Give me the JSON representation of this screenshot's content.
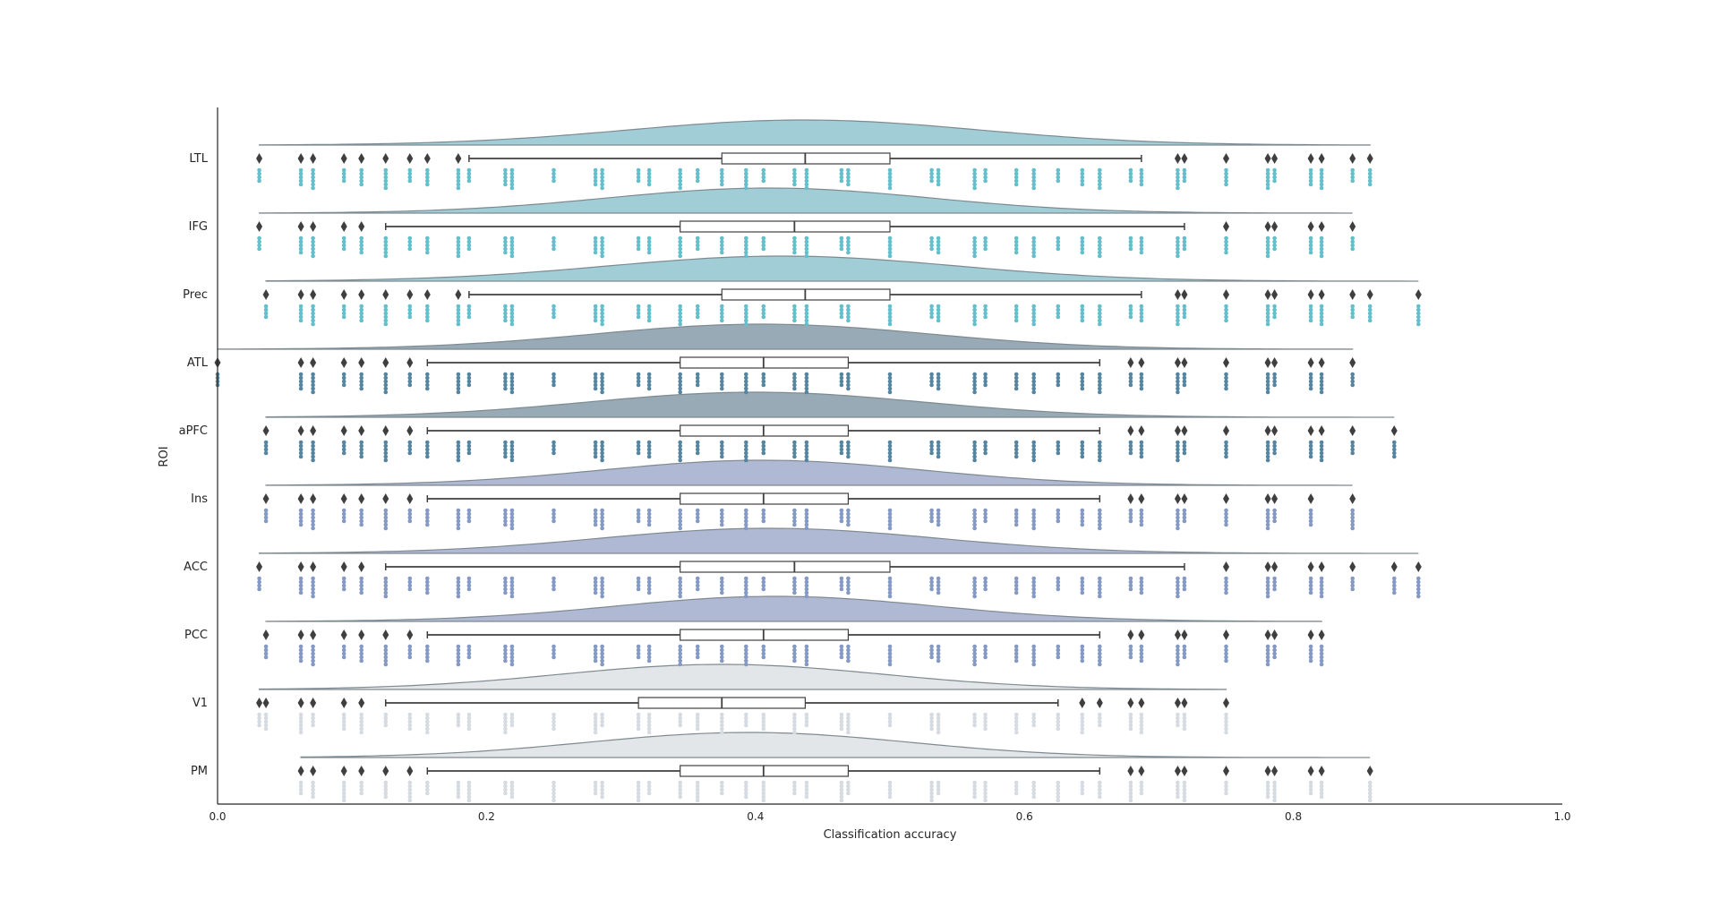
{
  "chart_data": {
    "type": "raincloud",
    "xlabel": "Classification accuracy",
    "ylabel": "ROI",
    "xlim": [
      0.0,
      1.0
    ],
    "xticks": [
      "0.0",
      "0.2",
      "0.4",
      "0.6",
      "0.8",
      "1.0"
    ],
    "xtick_values": [
      0.0,
      0.2,
      0.4,
      0.6,
      0.8,
      1.0
    ],
    "grid": false,
    "categories": [
      "LTL",
      "IFG",
      "Prec",
      "ATL",
      "aPFC",
      "Ins",
      "ACC",
      "PCC",
      "V1",
      "PM"
    ],
    "series": [
      {
        "category": "LTL",
        "color": "#62bfcb",
        "cloud_color": "#a1cdd6",
        "kde": {
          "mode": 0.436,
          "sd": 0.13,
          "min": 0.031,
          "max": 0.857
        },
        "box": {
          "whisker_low": 0.187,
          "q1": 0.375,
          "median": 0.437,
          "q3": 0.5,
          "whisker_high": 0.687
        },
        "outliers": [
          0.031,
          0.062,
          0.071,
          0.094,
          0.107,
          0.125,
          0.143,
          0.156,
          0.179,
          0.714,
          0.719,
          0.75,
          0.781,
          0.786,
          0.813,
          0.821,
          0.844,
          0.857
        ],
        "points": [
          0.031,
          0.062,
          0.071,
          0.094,
          0.107,
          0.125,
          0.143,
          0.156,
          0.179,
          0.187,
          0.214,
          0.219,
          0.25,
          0.281,
          0.286,
          0.313,
          0.321,
          0.344,
          0.357,
          0.375,
          0.393,
          0.406,
          0.429,
          0.438,
          0.464,
          0.469,
          0.5,
          0.531,
          0.536,
          0.563,
          0.571,
          0.594,
          0.607,
          0.625,
          0.643,
          0.656,
          0.679,
          0.687,
          0.714,
          0.719,
          0.75,
          0.781,
          0.786,
          0.813,
          0.821,
          0.844,
          0.857
        ]
      },
      {
        "category": "IFG",
        "color": "#62bfcb",
        "cloud_color": "#a1cdd6",
        "kde": {
          "mode": 0.41,
          "sd": 0.12,
          "min": 0.031,
          "max": 0.844
        },
        "box": {
          "whisker_low": 0.125,
          "q1": 0.344,
          "median": 0.429,
          "q3": 0.5,
          "whisker_high": 0.719
        },
        "outliers": [
          0.031,
          0.062,
          0.071,
          0.094,
          0.107,
          0.75,
          0.781,
          0.786,
          0.813,
          0.821,
          0.844
        ],
        "points": [
          0.031,
          0.062,
          0.071,
          0.094,
          0.107,
          0.125,
          0.143,
          0.156,
          0.179,
          0.187,
          0.214,
          0.219,
          0.25,
          0.281,
          0.286,
          0.313,
          0.321,
          0.344,
          0.357,
          0.375,
          0.393,
          0.406,
          0.429,
          0.438,
          0.464,
          0.469,
          0.5,
          0.531,
          0.536,
          0.563,
          0.571,
          0.594,
          0.607,
          0.625,
          0.643,
          0.656,
          0.679,
          0.687,
          0.714,
          0.719,
          0.75,
          0.781,
          0.786,
          0.813,
          0.821,
          0.844
        ]
      },
      {
        "category": "Prec",
        "color": "#62bfcb",
        "cloud_color": "#a1cdd6",
        "kde": {
          "mode": 0.42,
          "sd": 0.13,
          "min": 0.036,
          "max": 0.893
        },
        "box": {
          "whisker_low": 0.187,
          "q1": 0.375,
          "median": 0.437,
          "q3": 0.5,
          "whisker_high": 0.687
        },
        "outliers": [
          0.036,
          0.062,
          0.071,
          0.094,
          0.107,
          0.125,
          0.143,
          0.156,
          0.179,
          0.714,
          0.719,
          0.75,
          0.781,
          0.786,
          0.813,
          0.821,
          0.844,
          0.857,
          0.893
        ],
        "points": [
          0.036,
          0.062,
          0.071,
          0.094,
          0.107,
          0.125,
          0.143,
          0.156,
          0.179,
          0.187,
          0.214,
          0.219,
          0.25,
          0.281,
          0.286,
          0.313,
          0.321,
          0.344,
          0.357,
          0.375,
          0.393,
          0.406,
          0.429,
          0.438,
          0.464,
          0.469,
          0.5,
          0.531,
          0.536,
          0.563,
          0.571,
          0.594,
          0.607,
          0.625,
          0.643,
          0.656,
          0.679,
          0.687,
          0.714,
          0.719,
          0.75,
          0.781,
          0.786,
          0.813,
          0.821,
          0.844,
          0.857,
          0.893
        ]
      },
      {
        "category": "ATL",
        "color": "#5585a0",
        "cloud_color": "#97aab6",
        "kde": {
          "mode": 0.405,
          "sd": 0.125,
          "min": 0.0,
          "max": 0.844
        },
        "box": {
          "whisker_low": 0.156,
          "q1": 0.344,
          "median": 0.406,
          "q3": 0.469,
          "whisker_high": 0.656
        },
        "outliers": [
          0.0,
          0.062,
          0.071,
          0.094,
          0.107,
          0.125,
          0.143,
          0.679,
          0.687,
          0.714,
          0.719,
          0.75,
          0.781,
          0.786,
          0.813,
          0.821,
          0.844
        ],
        "points": [
          0.0,
          0.062,
          0.071,
          0.094,
          0.107,
          0.125,
          0.143,
          0.156,
          0.179,
          0.187,
          0.214,
          0.219,
          0.25,
          0.281,
          0.286,
          0.313,
          0.321,
          0.344,
          0.357,
          0.375,
          0.393,
          0.406,
          0.429,
          0.438,
          0.464,
          0.469,
          0.5,
          0.531,
          0.536,
          0.563,
          0.571,
          0.594,
          0.607,
          0.625,
          0.643,
          0.656,
          0.679,
          0.687,
          0.714,
          0.719,
          0.75,
          0.781,
          0.786,
          0.813,
          0.821,
          0.844
        ]
      },
      {
        "category": "aPFC",
        "color": "#5585a0",
        "cloud_color": "#97aab6",
        "kde": {
          "mode": 0.4,
          "sd": 0.125,
          "min": 0.036,
          "max": 0.875
        },
        "box": {
          "whisker_low": 0.156,
          "q1": 0.344,
          "median": 0.406,
          "q3": 0.469,
          "whisker_high": 0.656
        },
        "outliers": [
          0.036,
          0.062,
          0.071,
          0.094,
          0.107,
          0.125,
          0.143,
          0.679,
          0.687,
          0.714,
          0.719,
          0.75,
          0.781,
          0.786,
          0.813,
          0.821,
          0.844,
          0.875
        ],
        "points": [
          0.036,
          0.062,
          0.071,
          0.094,
          0.107,
          0.125,
          0.143,
          0.156,
          0.179,
          0.187,
          0.214,
          0.219,
          0.25,
          0.281,
          0.286,
          0.313,
          0.321,
          0.344,
          0.357,
          0.375,
          0.393,
          0.406,
          0.429,
          0.438,
          0.464,
          0.469,
          0.5,
          0.531,
          0.536,
          0.563,
          0.571,
          0.594,
          0.607,
          0.625,
          0.643,
          0.656,
          0.679,
          0.687,
          0.714,
          0.719,
          0.75,
          0.781,
          0.786,
          0.813,
          0.821,
          0.844,
          0.875
        ]
      },
      {
        "category": "Ins",
        "color": "#8599c5",
        "cloud_color": "#b0b9d3",
        "kde": {
          "mode": 0.405,
          "sd": 0.12,
          "min": 0.036,
          "max": 0.844
        },
        "box": {
          "whisker_low": 0.156,
          "q1": 0.344,
          "median": 0.406,
          "q3": 0.469,
          "whisker_high": 0.656
        },
        "outliers": [
          0.036,
          0.062,
          0.071,
          0.094,
          0.107,
          0.125,
          0.143,
          0.679,
          0.687,
          0.714,
          0.719,
          0.75,
          0.781,
          0.786,
          0.813,
          0.844
        ],
        "points": [
          0.036,
          0.062,
          0.071,
          0.094,
          0.107,
          0.125,
          0.143,
          0.156,
          0.179,
          0.187,
          0.214,
          0.219,
          0.25,
          0.281,
          0.286,
          0.313,
          0.321,
          0.344,
          0.357,
          0.375,
          0.393,
          0.406,
          0.429,
          0.438,
          0.464,
          0.469,
          0.5,
          0.531,
          0.536,
          0.563,
          0.571,
          0.594,
          0.607,
          0.625,
          0.643,
          0.656,
          0.679,
          0.687,
          0.714,
          0.719,
          0.75,
          0.781,
          0.786,
          0.813,
          0.844
        ]
      },
      {
        "category": "ACC",
        "color": "#8599c5",
        "cloud_color": "#b0b9d3",
        "kde": {
          "mode": 0.41,
          "sd": 0.125,
          "min": 0.031,
          "max": 0.893
        },
        "box": {
          "whisker_low": 0.125,
          "q1": 0.344,
          "median": 0.429,
          "q3": 0.5,
          "whisker_high": 0.719
        },
        "outliers": [
          0.031,
          0.062,
          0.071,
          0.094,
          0.107,
          0.75,
          0.781,
          0.786,
          0.813,
          0.821,
          0.844,
          0.875,
          0.893
        ],
        "points": [
          0.031,
          0.062,
          0.071,
          0.094,
          0.107,
          0.125,
          0.143,
          0.156,
          0.179,
          0.187,
          0.214,
          0.219,
          0.25,
          0.281,
          0.286,
          0.313,
          0.321,
          0.344,
          0.357,
          0.375,
          0.393,
          0.406,
          0.429,
          0.438,
          0.464,
          0.469,
          0.5,
          0.531,
          0.536,
          0.563,
          0.571,
          0.594,
          0.607,
          0.625,
          0.643,
          0.656,
          0.679,
          0.687,
          0.714,
          0.719,
          0.75,
          0.781,
          0.786,
          0.813,
          0.821,
          0.844,
          0.875,
          0.893
        ]
      },
      {
        "category": "PCC",
        "color": "#8599c5",
        "cloud_color": "#b0b9d3",
        "kde": {
          "mode": 0.415,
          "sd": 0.12,
          "min": 0.036,
          "max": 0.821
        },
        "box": {
          "whisker_low": 0.156,
          "q1": 0.344,
          "median": 0.406,
          "q3": 0.469,
          "whisker_high": 0.656
        },
        "outliers": [
          0.036,
          0.062,
          0.071,
          0.094,
          0.107,
          0.125,
          0.143,
          0.679,
          0.687,
          0.714,
          0.719,
          0.75,
          0.781,
          0.786,
          0.813,
          0.821
        ],
        "points": [
          0.036,
          0.062,
          0.071,
          0.094,
          0.107,
          0.125,
          0.143,
          0.156,
          0.179,
          0.187,
          0.214,
          0.219,
          0.25,
          0.281,
          0.286,
          0.313,
          0.321,
          0.344,
          0.357,
          0.375,
          0.393,
          0.406,
          0.429,
          0.438,
          0.464,
          0.469,
          0.5,
          0.531,
          0.536,
          0.563,
          0.571,
          0.594,
          0.607,
          0.625,
          0.643,
          0.656,
          0.679,
          0.687,
          0.714,
          0.719,
          0.75,
          0.781,
          0.786,
          0.813,
          0.821
        ]
      },
      {
        "category": "V1",
        "color": "#d5dbe0",
        "cloud_color": "#e3e6e8",
        "kde": {
          "mode": 0.375,
          "sd": 0.12,
          "min": 0.031,
          "max": 0.75
        },
        "box": {
          "whisker_low": 0.125,
          "q1": 0.313,
          "median": 0.375,
          "q3": 0.437,
          "whisker_high": 0.625
        },
        "outliers": [
          0.031,
          0.036,
          0.062,
          0.071,
          0.094,
          0.107,
          0.643,
          0.656,
          0.679,
          0.687,
          0.714,
          0.719,
          0.75
        ],
        "points": [
          0.031,
          0.036,
          0.062,
          0.071,
          0.094,
          0.107,
          0.125,
          0.143,
          0.156,
          0.179,
          0.187,
          0.214,
          0.219,
          0.25,
          0.281,
          0.286,
          0.313,
          0.321,
          0.344,
          0.357,
          0.375,
          0.393,
          0.406,
          0.429,
          0.438,
          0.464,
          0.469,
          0.5,
          0.531,
          0.536,
          0.563,
          0.571,
          0.594,
          0.607,
          0.625,
          0.643,
          0.656,
          0.679,
          0.687,
          0.714,
          0.719,
          0.75
        ]
      },
      {
        "category": "PM",
        "color": "#d5dbe0",
        "cloud_color": "#e3e6e8",
        "kde": {
          "mode": 0.395,
          "sd": 0.12,
          "min": 0.062,
          "max": 0.857
        },
        "box": {
          "whisker_low": 0.156,
          "q1": 0.344,
          "median": 0.406,
          "q3": 0.469,
          "whisker_high": 0.656
        },
        "outliers": [
          0.062,
          0.071,
          0.094,
          0.107,
          0.125,
          0.143,
          0.679,
          0.687,
          0.714,
          0.719,
          0.75,
          0.781,
          0.786,
          0.813,
          0.821,
          0.857
        ],
        "points": [
          0.062,
          0.071,
          0.094,
          0.107,
          0.125,
          0.143,
          0.156,
          0.179,
          0.187,
          0.214,
          0.219,
          0.25,
          0.281,
          0.286,
          0.313,
          0.321,
          0.344,
          0.357,
          0.375,
          0.393,
          0.406,
          0.429,
          0.438,
          0.464,
          0.469,
          0.5,
          0.531,
          0.536,
          0.563,
          0.571,
          0.594,
          0.607,
          0.625,
          0.643,
          0.656,
          0.679,
          0.687,
          0.714,
          0.719,
          0.75,
          0.781,
          0.786,
          0.813,
          0.821,
          0.857
        ]
      }
    ]
  }
}
